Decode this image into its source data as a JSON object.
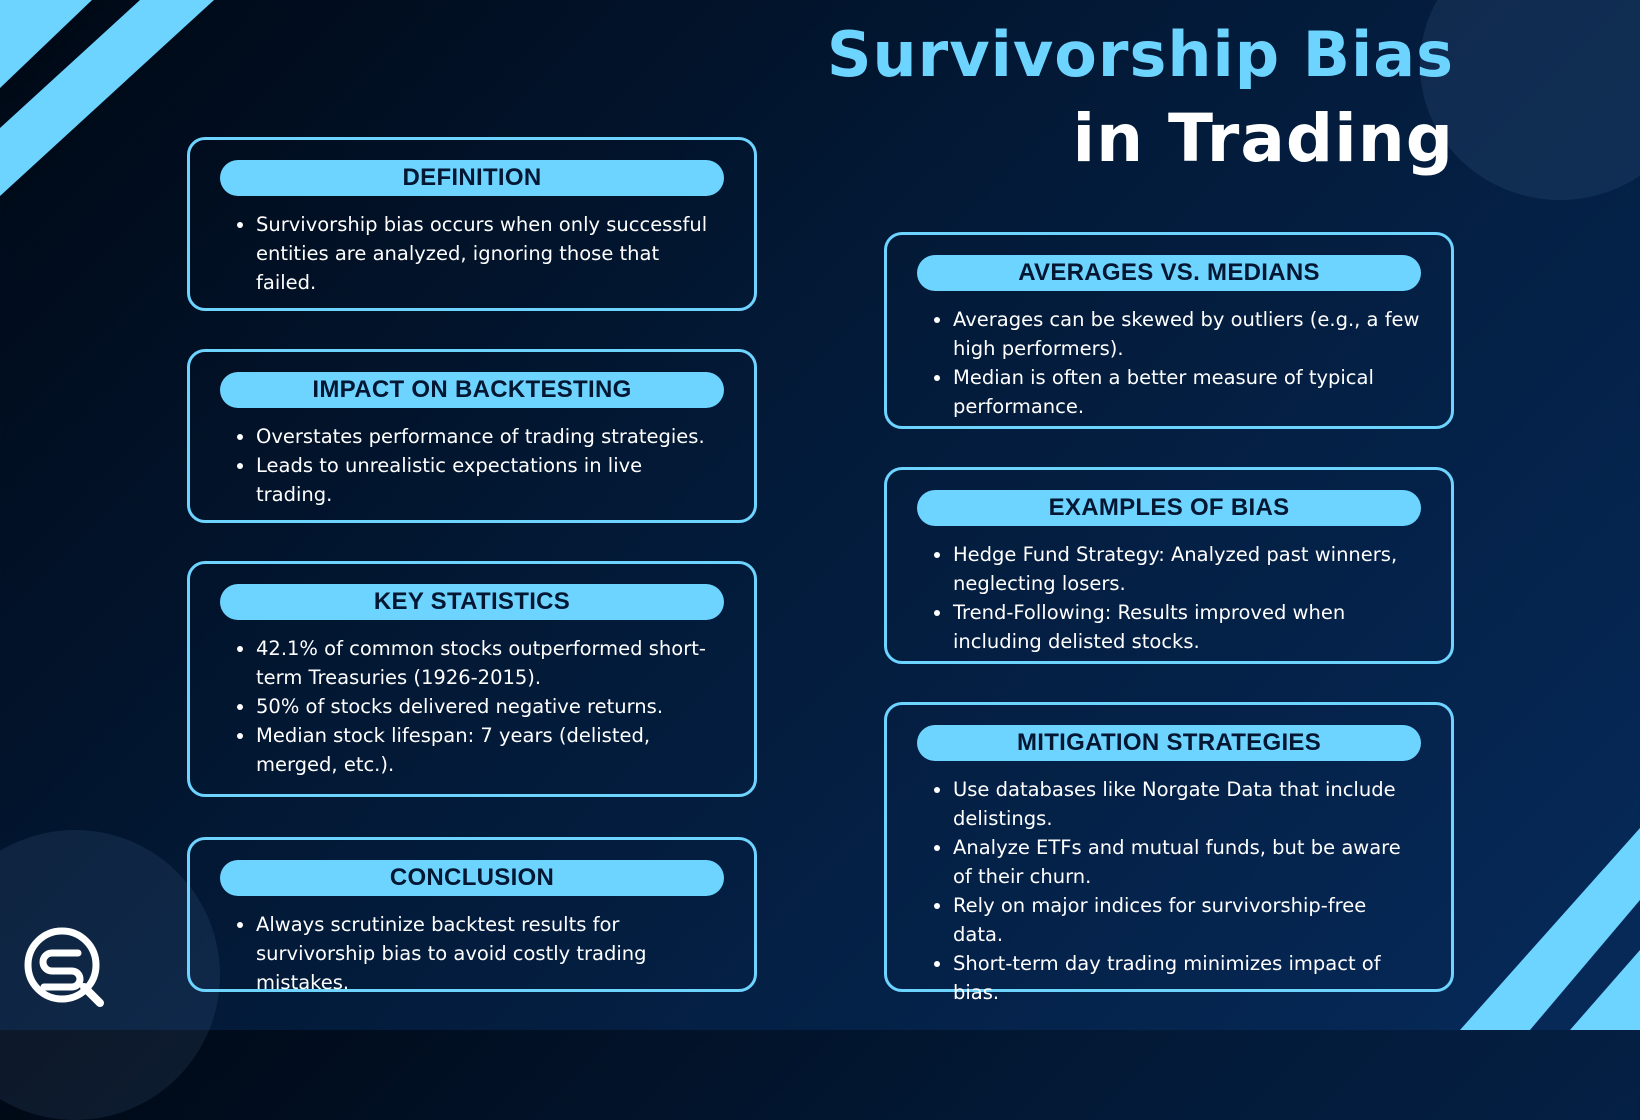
{
  "title": {
    "line1": "Survivorship Bias",
    "line2": "in Trading"
  },
  "colors": {
    "accent": "#6dd3ff",
    "background": "#031a38",
    "pill_text": "#031632"
  },
  "logo": {
    "icon": "sq-logo-icon"
  },
  "cards": {
    "definition": {
      "heading": "DEFINITION",
      "bullets": [
        "Survivorship bias occurs when only successful entities are analyzed, ignoring those that failed."
      ]
    },
    "impact": {
      "heading": "IMPACT ON BACKTESTING",
      "bullets": [
        "Overstates performance of trading strategies.",
        "Leads to unrealistic expectations in live trading."
      ]
    },
    "statistics": {
      "heading": "KEY STATISTICS",
      "bullets": [
        "42.1% of common stocks outperformed short-term Treasuries (1926-2015).",
        "50% of stocks delivered negative returns.",
        "Median stock lifespan: 7 years (delisted, merged, etc.)."
      ]
    },
    "conclusion": {
      "heading": "CONCLUSION",
      "bullets": [
        "Always scrutinize backtest results for survivorship bias to avoid costly trading mistakes."
      ]
    },
    "averages": {
      "heading": "AVERAGES VS. MEDIANS",
      "bullets": [
        "Averages can be skewed by outliers (e.g., a few high performers).",
        "Median is often a better measure of typical performance."
      ]
    },
    "examples": {
      "heading": "EXAMPLES OF BIAS",
      "bullets": [
        "Hedge Fund Strategy: Analyzed past winners, neglecting losers.",
        "Trend-Following: Results improved when including delisted stocks."
      ]
    },
    "mitigation": {
      "heading": "MITIGATION STRATEGIES",
      "bullets": [
        "Use databases like Norgate Data that include delistings.",
        "Analyze ETFs and mutual funds, but be aware of their churn.",
        "Rely on major indices for survivorship-free data.",
        "Short-term day trading minimizes impact of bias."
      ]
    }
  }
}
